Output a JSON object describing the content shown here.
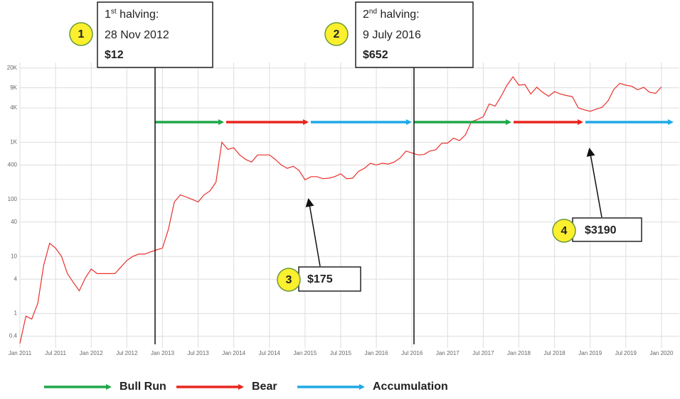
{
  "chart_data": {
    "type": "line",
    "log_y": true,
    "grid": true,
    "xlim": [
      "2011-01",
      "2020-04"
    ],
    "ylim": [
      0.25,
      25000
    ],
    "xticks": [
      {
        "value": "2011-01",
        "label": "Jan 2011"
      },
      {
        "value": "2011-07",
        "label": "Jul 2011"
      },
      {
        "value": "2012-01",
        "label": "Jan 2012"
      },
      {
        "value": "2012-07",
        "label": "Jul 2012"
      },
      {
        "value": "2013-01",
        "label": "Jan 2013"
      },
      {
        "value": "2013-07",
        "label": "Jul 2013"
      },
      {
        "value": "2014-01",
        "label": "Jan 2014"
      },
      {
        "value": "2014-07",
        "label": "Jul 2014"
      },
      {
        "value": "2015-01",
        "label": "Jan 2015"
      },
      {
        "value": "2015-07",
        "label": "Jul 2015"
      },
      {
        "value": "2016-01",
        "label": "Jan 2016"
      },
      {
        "value": "2016-07",
        "label": "Jul 2016"
      },
      {
        "value": "2017-01",
        "label": "Jan 2017"
      },
      {
        "value": "2017-07",
        "label": "Jul 2017"
      },
      {
        "value": "2018-01",
        "label": "Jan 2018"
      },
      {
        "value": "2018-07",
        "label": "Jul 2018"
      },
      {
        "value": "2019-01",
        "label": "Jan 2019"
      },
      {
        "value": "2019-07",
        "label": "Jul 2019"
      },
      {
        "value": "2020-01",
        "label": "Jan 2020"
      }
    ],
    "yticks": [
      0.4,
      1,
      4,
      10,
      40,
      100,
      400,
      {
        "value": 1000,
        "label": "1K"
      },
      {
        "value": 4000,
        "label": "4K"
      },
      {
        "value": 9000,
        "label": "9K"
      },
      {
        "value": 20000,
        "label": "20K"
      }
    ],
    "x": [
      "2011-01",
      "2011-02",
      "2011-03",
      "2011-04",
      "2011-05",
      "2011-06",
      "2011-07",
      "2011-08",
      "2011-09",
      "2011-10",
      "2011-11",
      "2011-12",
      "2012-01",
      "2012-02",
      "2012-03",
      "2012-04",
      "2012-05",
      "2012-06",
      "2012-07",
      "2012-08",
      "2012-09",
      "2012-10",
      "2012-11",
      "2012-12",
      "2013-01",
      "2013-02",
      "2013-03",
      "2013-04",
      "2013-05",
      "2013-06",
      "2013-07",
      "2013-08",
      "2013-09",
      "2013-10",
      "2013-11",
      "2013-12",
      "2014-01",
      "2014-02",
      "2014-03",
      "2014-04",
      "2014-05",
      "2014-06",
      "2014-07",
      "2014-08",
      "2014-09",
      "2014-10",
      "2014-11",
      "2014-12",
      "2015-01",
      "2015-02",
      "2015-03",
      "2015-04",
      "2015-05",
      "2015-06",
      "2015-07",
      "2015-08",
      "2015-09",
      "2015-10",
      "2015-11",
      "2015-12",
      "2016-01",
      "2016-02",
      "2016-03",
      "2016-04",
      "2016-05",
      "2016-06",
      "2016-07",
      "2016-08",
      "2016-09",
      "2016-10",
      "2016-11",
      "2016-12",
      "2017-01",
      "2017-02",
      "2017-03",
      "2017-04",
      "2017-05",
      "2017-06",
      "2017-07",
      "2017-08",
      "2017-09",
      "2017-10",
      "2017-11",
      "2017-12",
      "2018-01",
      "2018-02",
      "2018-03",
      "2018-04",
      "2018-05",
      "2018-06",
      "2018-07",
      "2018-08",
      "2018-09",
      "2018-10",
      "2018-11",
      "2018-12",
      "2019-01",
      "2019-02",
      "2019-03",
      "2019-04",
      "2019-05",
      "2019-06",
      "2019-07",
      "2019-08",
      "2019-09",
      "2019-10",
      "2019-11",
      "2019-12",
      "2020-01"
    ],
    "series": [
      {
        "color": "#e8302c",
        "values": [
          0.3,
          0.9,
          0.8,
          1.5,
          7,
          17,
          14,
          10,
          5,
          3.5,
          2.5,
          4.2,
          6,
          5,
          5,
          5,
          5,
          6.5,
          8.5,
          10,
          11,
          11,
          12,
          13,
          14,
          30,
          90,
          120,
          110,
          100,
          90,
          120,
          140,
          200,
          1000,
          750,
          800,
          600,
          500,
          450,
          600,
          600,
          600,
          500,
          400,
          350,
          380,
          320,
          220,
          250,
          250,
          230,
          235,
          250,
          280,
          230,
          235,
          310,
          350,
          430,
          400,
          430,
          415,
          450,
          530,
          700,
          650,
          600,
          610,
          700,
          740,
          960,
          970,
          1180,
          1070,
          1350,
          2300,
          2500,
          2800,
          4700,
          4300,
          6400,
          10000,
          14000,
          10000,
          10300,
          7000,
          9200,
          7500,
          6400,
          7700,
          7000,
          6600,
          6300,
          4000,
          3700,
          3500,
          3800,
          4100,
          5300,
          8500,
          10800,
          10000,
          9600,
          8300,
          9200,
          7500,
          7200,
          9300
        ]
      }
    ],
    "annotations": [
      {
        "number": "1",
        "title": "1",
        "title_sup": "st",
        "title_rest": " halving:",
        "date": "28 Nov 2012",
        "price": "$12"
      },
      {
        "number": "2",
        "title": "2",
        "title_sup": "nd",
        "title_rest": " halving:",
        "date": "9 July 2016",
        "price": "$652"
      },
      {
        "number": "3",
        "price": "$175"
      },
      {
        "number": "4",
        "price": "$3190"
      }
    ],
    "legend": [
      {
        "name": "Bull Run",
        "color": "#1fa84a"
      },
      {
        "name": "Bear",
        "color": "#e8261f"
      },
      {
        "name": "Accumulation",
        "color": "#1fa9e6"
      }
    ]
  }
}
